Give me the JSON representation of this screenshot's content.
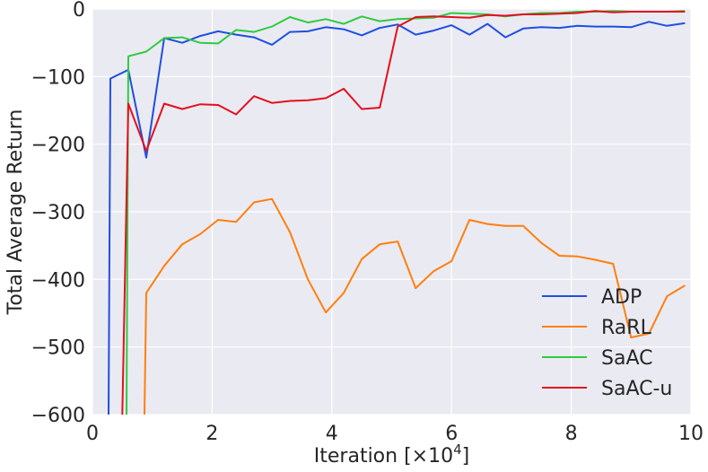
{
  "chart_data": {
    "type": "line",
    "xlabel": "Iteration [×10",
    "xlabel_exponent": "4",
    "xlabel_suffix": "]",
    "ylabel": "Total Average Return",
    "xlim": [
      0,
      10
    ],
    "ylim": [
      -600,
      0
    ],
    "xticks": [
      0,
      2,
      4,
      6,
      8,
      10
    ],
    "xtick_labels": [
      "0",
      "2",
      "4",
      "6",
      "8",
      "10"
    ],
    "yticks": [
      0,
      -100,
      -200,
      -300,
      -400,
      -500,
      -600
    ],
    "ytick_labels": [
      "0",
      "−100",
      "−200",
      "−300",
      "−400",
      "−500",
      "−600"
    ],
    "grid": true,
    "background": "#eaeaf2",
    "legend_position": "lower-right",
    "series": [
      {
        "name": "ADP",
        "color": "#1f4fe0",
        "x": [
          0.27,
          0.3,
          0.6,
          0.9,
          1.2,
          1.5,
          1.8,
          2.1,
          2.4,
          2.7,
          3.0,
          3.3,
          3.6,
          3.9,
          4.2,
          4.5,
          4.8,
          5.1,
          5.4,
          5.7,
          6.0,
          6.3,
          6.6,
          6.9,
          7.2,
          7.5,
          7.8,
          8.1,
          8.4,
          8.7,
          9.0,
          9.3,
          9.6,
          9.9
        ],
        "y": [
          -600,
          -103,
          -90,
          -220,
          -43,
          -50,
          -40,
          -33,
          -38,
          -42,
          -53,
          -34,
          -33,
          -27,
          -30,
          -39,
          -28,
          -23,
          -38,
          -32,
          -24,
          -38,
          -22,
          -42,
          -29,
          -27,
          -28,
          -25,
          -26,
          -26,
          -27,
          -19,
          -25,
          -21
        ]
      },
      {
        "name": "RaRL",
        "color": "#ff7f0e",
        "x": [
          0.87,
          0.9,
          1.2,
          1.5,
          1.8,
          2.1,
          2.4,
          2.7,
          3.0,
          3.3,
          3.6,
          3.9,
          4.2,
          4.5,
          4.8,
          5.1,
          5.4,
          5.7,
          6.0,
          6.3,
          6.6,
          6.9,
          7.2,
          7.5,
          7.8,
          8.1,
          8.4,
          8.7,
          9.0,
          9.3,
          9.6,
          9.9
        ],
        "y": [
          -600,
          -420,
          -380,
          -348,
          -333,
          -312,
          -315,
          -286,
          -281,
          -330,
          -400,
          -449,
          -420,
          -370,
          -348,
          -344,
          -413,
          -388,
          -373,
          -312,
          -318,
          -321,
          -321,
          -346,
          -365,
          -366,
          -371,
          -377,
          -486,
          -480,
          -425,
          -409
        ]
      },
      {
        "name": "SaAC",
        "color": "#2ecc40",
        "x": [
          0.57,
          0.6,
          0.9,
          1.2,
          1.5,
          1.8,
          2.1,
          2.4,
          2.7,
          3.0,
          3.3,
          3.6,
          3.9,
          4.2,
          4.5,
          4.8,
          5.1,
          5.4,
          5.7,
          6.0,
          6.3,
          6.6,
          6.9,
          7.2,
          7.5,
          7.8,
          8.1,
          8.4,
          8.7,
          9.0,
          9.3,
          9.6,
          9.9
        ],
        "y": [
          -600,
          -70,
          -63,
          -43,
          -42,
          -50,
          -51,
          -31,
          -34,
          -26,
          -12,
          -20,
          -15,
          -22,
          -11,
          -18,
          -15,
          -14,
          -13,
          -6,
          -7,
          -8,
          -11,
          -8,
          -6,
          -6,
          -4,
          -4,
          -3,
          -4,
          -4,
          -4,
          -3
        ]
      },
      {
        "name": "SaAC-u",
        "color": "#e3101e",
        "x": [
          0.5,
          0.6,
          0.9,
          1.2,
          1.5,
          1.8,
          2.1,
          2.4,
          2.7,
          3.0,
          3.3,
          3.6,
          3.9,
          4.2,
          4.5,
          4.8,
          5.1,
          5.4,
          5.7,
          6.0,
          6.3,
          6.6,
          6.9,
          7.2,
          7.5,
          7.8,
          8.1,
          8.4,
          8.7,
          9.0,
          9.3,
          9.6,
          9.9
        ],
        "y": [
          -600,
          -140,
          -210,
          -140,
          -148,
          -141,
          -142,
          -156,
          -129,
          -139,
          -136,
          -135,
          -132,
          -118,
          -148,
          -146,
          -26,
          -12,
          -11,
          -12,
          -13,
          -9,
          -10,
          -8,
          -8,
          -7,
          -6,
          -3,
          -5,
          -4,
          -4,
          -4,
          -4
        ]
      }
    ]
  }
}
